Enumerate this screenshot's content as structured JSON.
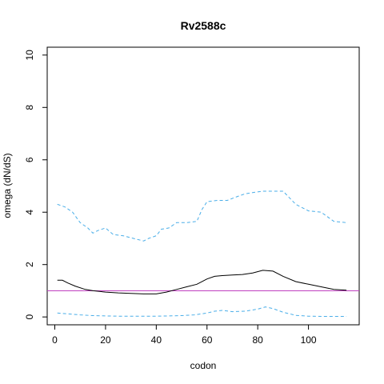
{
  "chart_data": {
    "type": "line",
    "title": "Rv2588c",
    "xlabel": "codon",
    "ylabel": "omega (dN/dS)",
    "xlim": [
      -3,
      120
    ],
    "ylim": [
      -0.3,
      10.3
    ],
    "x_ticks": [
      0,
      20,
      40,
      60,
      80,
      100
    ],
    "y_ticks": [
      0,
      2,
      4,
      6,
      8,
      10
    ],
    "grid": false,
    "legend": "none",
    "reference_line": {
      "y": 1,
      "color": "#c040c0"
    },
    "series": [
      {
        "role": "estimate",
        "style": "solid",
        "color": "#000000",
        "x": [
          1,
          3,
          5,
          8,
          12,
          15,
          20,
          25,
          30,
          35,
          40,
          44,
          48,
          52,
          56,
          60,
          63,
          66,
          70,
          74,
          78,
          82,
          86,
          90,
          95,
          100,
          105,
          110,
          115
        ],
        "y": [
          1.4,
          1.4,
          1.3,
          1.18,
          1.05,
          1.0,
          0.95,
          0.92,
          0.9,
          0.88,
          0.88,
          0.95,
          1.05,
          1.15,
          1.25,
          1.45,
          1.55,
          1.58,
          1.6,
          1.62,
          1.68,
          1.78,
          1.75,
          1.55,
          1.35,
          1.25,
          1.15,
          1.05,
          1.02
        ]
      },
      {
        "role": "upper bound",
        "style": "dashed",
        "color": "#4aaee8",
        "x": [
          1,
          4,
          7,
          10,
          13,
          15,
          17,
          20,
          23,
          27,
          31,
          35,
          37,
          40,
          42,
          45,
          48,
          52,
          56,
          58,
          60,
          64,
          68,
          72,
          75,
          78,
          82,
          86,
          90,
          92,
          95,
          98,
          100,
          105,
          110,
          115
        ],
        "y": [
          4.3,
          4.2,
          4.0,
          3.6,
          3.4,
          3.2,
          3.3,
          3.4,
          3.15,
          3.1,
          3.0,
          2.9,
          3.0,
          3.1,
          3.35,
          3.4,
          3.6,
          3.6,
          3.65,
          4.1,
          4.4,
          4.45,
          4.45,
          4.6,
          4.7,
          4.75,
          4.8,
          4.8,
          4.8,
          4.6,
          4.3,
          4.15,
          4.05,
          4.0,
          3.65,
          3.6
        ]
      },
      {
        "role": "lower bound",
        "style": "dashed",
        "color": "#4aaee8",
        "x": [
          1,
          5,
          10,
          15,
          20,
          25,
          30,
          35,
          40,
          45,
          50,
          55,
          60,
          63,
          66,
          70,
          75,
          80,
          83,
          86,
          90,
          95,
          100,
          105,
          110,
          115
        ],
        "y": [
          0.15,
          0.12,
          0.08,
          0.05,
          0.04,
          0.03,
          0.03,
          0.03,
          0.03,
          0.04,
          0.05,
          0.08,
          0.15,
          0.22,
          0.25,
          0.2,
          0.22,
          0.3,
          0.38,
          0.32,
          0.18,
          0.06,
          0.03,
          0.02,
          0.02,
          0.02
        ]
      }
    ]
  }
}
